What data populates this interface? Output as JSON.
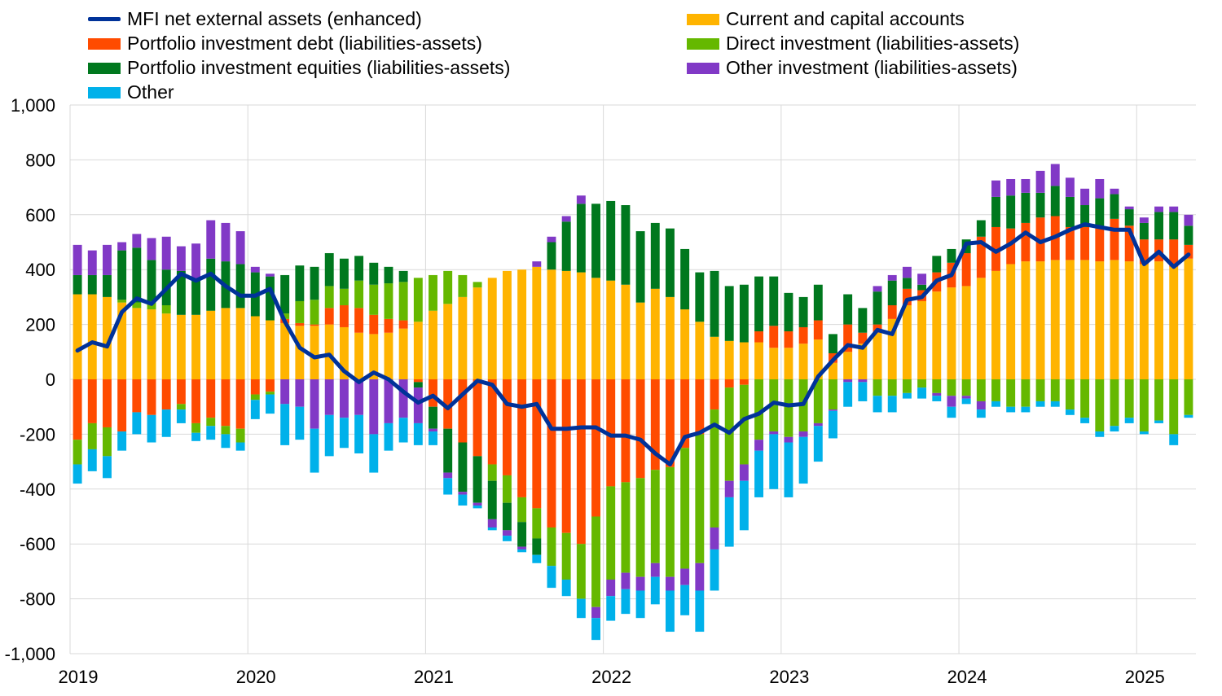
{
  "chart_data": {
    "type": "stacked-bar-with-line",
    "title": "",
    "xlabel": "",
    "ylabel": "",
    "ylim": [
      -1000,
      1000
    ],
    "yticks": [
      -1000,
      -800,
      -600,
      -400,
      -200,
      0,
      200,
      400,
      600,
      800,
      1000
    ],
    "ytick_labels": [
      "-1,000",
      "-800",
      "-600",
      "-400",
      "-200",
      "0",
      "200",
      "400",
      "600",
      "800",
      "1,000"
    ],
    "year_labels": [
      "2019",
      "2020",
      "2021",
      "2022",
      "2023",
      "2024",
      "2025"
    ],
    "period_count": 76,
    "legend_position": "top",
    "series": [
      {
        "name": "Current and capital accounts",
        "key": "cca",
        "color": "#FFB400",
        "values": [
          310,
          310,
          300,
          280,
          260,
          255,
          240,
          235,
          235,
          250,
          260,
          260,
          230,
          215,
          205,
          195,
          195,
          200,
          190,
          170,
          165,
          170,
          185,
          210,
          250,
          275,
          300,
          335,
          370,
          395,
          400,
          410,
          400,
          395,
          390,
          370,
          360,
          345,
          280,
          330,
          300,
          255,
          210,
          155,
          140,
          135,
          135,
          115,
          115,
          130,
          145,
          60,
          100,
          130,
          170,
          220,
          270,
          285,
          320,
          335,
          340,
          370,
          395,
          420,
          430,
          430,
          435,
          435,
          435,
          430,
          435,
          430,
          420,
          430,
          410,
          440
        ]
      },
      {
        "name": "Portfolio investment debt (liabilities-assets)",
        "key": "pid",
        "color": "#FF4B00",
        "values": [
          -220,
          -160,
          -175,
          -190,
          -120,
          -130,
          -110,
          -90,
          -160,
          -140,
          -170,
          -180,
          -55,
          -45,
          15,
          10,
          5,
          60,
          80,
          90,
          70,
          50,
          30,
          -10,
          -100,
          -180,
          -230,
          -280,
          -310,
          -350,
          -430,
          -470,
          -540,
          -560,
          -600,
          -500,
          -390,
          -375,
          -360,
          -330,
          -320,
          -250,
          -200,
          -110,
          -30,
          -20,
          40,
          80,
          60,
          60,
          70,
          35,
          100,
          40,
          30,
          50,
          60,
          40,
          70,
          90,
          120,
          150,
          160,
          130,
          140,
          160,
          160,
          120,
          120,
          120,
          150,
          130,
          90,
          80,
          100,
          50
        ]
      },
      {
        "name": "Direct investment (liabilities-assets)",
        "key": "di",
        "color": "#65B800",
        "values": [
          -90,
          -95,
          -105,
          10,
          20,
          30,
          30,
          -20,
          -35,
          -30,
          -30,
          -50,
          -20,
          -10,
          20,
          80,
          90,
          80,
          60,
          100,
          110,
          130,
          140,
          160,
          130,
          120,
          80,
          20,
          -60,
          -100,
          -90,
          -110,
          -140,
          -170,
          -200,
          -330,
          -340,
          -330,
          -360,
          -340,
          -400,
          -440,
          -470,
          -430,
          -340,
          -290,
          -220,
          -190,
          -210,
          -190,
          -160,
          -110,
          0,
          0,
          -60,
          -60,
          -50,
          -30,
          -50,
          -60,
          -60,
          -80,
          -80,
          -100,
          -100,
          -80,
          -80,
          -110,
          -140,
          -190,
          -170,
          -140,
          -190,
          -150,
          -200,
          -130
        ]
      },
      {
        "name": "Portfolio investment equities (liabilities-assets)",
        "key": "pie",
        "color": "#00781E",
        "values": [
          70,
          70,
          80,
          180,
          200,
          150,
          130,
          160,
          130,
          190,
          170,
          160,
          160,
          160,
          140,
          130,
          120,
          120,
          110,
          90,
          80,
          60,
          40,
          -20,
          -80,
          -160,
          -180,
          -170,
          -140,
          -100,
          -90,
          -60,
          100,
          180,
          250,
          270,
          290,
          290,
          260,
          240,
          250,
          220,
          180,
          240,
          200,
          210,
          200,
          180,
          140,
          110,
          130,
          70,
          110,
          90,
          120,
          90,
          40,
          20,
          60,
          50,
          50,
          60,
          110,
          120,
          110,
          90,
          110,
          110,
          80,
          110,
          90,
          60,
          60,
          100,
          100,
          70
        ]
      },
      {
        "name": "Other investment (liabilities-assets)",
        "key": "oi",
        "color": "#8139C6",
        "values": [
          110,
          90,
          110,
          30,
          50,
          80,
          120,
          90,
          130,
          140,
          140,
          120,
          20,
          10,
          -90,
          -100,
          -180,
          -130,
          -140,
          -130,
          -200,
          -160,
          -140,
          -130,
          -10,
          -20,
          -10,
          -10,
          -30,
          -20,
          -10,
          20,
          20,
          20,
          30,
          -40,
          -60,
          -60,
          -50,
          -50,
          -50,
          -60,
          -100,
          -80,
          -60,
          -60,
          -40,
          -10,
          -20,
          -20,
          -10,
          -5,
          -10,
          -10,
          20,
          20,
          40,
          40,
          -10,
          -40,
          -10,
          -30,
          60,
          60,
          50,
          80,
          80,
          70,
          60,
          70,
          20,
          10,
          20,
          20,
          20,
          40
        ]
      },
      {
        "name": "Other",
        "key": "oth",
        "color": "#00B1EA",
        "values": [
          -70,
          -80,
          -80,
          -70,
          -80,
          -100,
          -100,
          -50,
          -30,
          -50,
          -50,
          -30,
          -70,
          -70,
          -150,
          -120,
          -160,
          -150,
          -110,
          -140,
          -140,
          -100,
          -90,
          -80,
          -50,
          -60,
          -40,
          -10,
          -10,
          -20,
          -10,
          -30,
          -80,
          -60,
          -70,
          -80,
          -90,
          -90,
          -100,
          -100,
          -150,
          -110,
          -150,
          -150,
          -180,
          -180,
          -170,
          -200,
          -200,
          -170,
          -130,
          -100,
          -90,
          -70,
          -60,
          -60,
          -20,
          -40,
          -20,
          -40,
          -20,
          -30,
          -20,
          -20,
          -20,
          -20,
          -20,
          -20,
          -20,
          -20,
          -20,
          -20,
          -10,
          -10,
          -40,
          -10
        ]
      },
      {
        "name": "MFI net external assets (enhanced)",
        "key": "mfi",
        "color": "#003299",
        "type": "line",
        "values": [
          105,
          135,
          120,
          245,
          295,
          275,
          330,
          385,
          360,
          385,
          340,
          305,
          305,
          330,
          210,
          115,
          80,
          90,
          30,
          -10,
          25,
          0,
          -45,
          -85,
          -60,
          -105,
          -55,
          -5,
          -20,
          -90,
          -100,
          -90,
          -180,
          -180,
          -175,
          -175,
          -205,
          -205,
          -220,
          -270,
          -310,
          -210,
          -195,
          -165,
          -195,
          -145,
          -125,
          -85,
          -95,
          -90,
          10,
          70,
          125,
          115,
          180,
          165,
          290,
          300,
          360,
          380,
          495,
          500,
          465,
          495,
          535,
          500,
          520,
          545,
          565,
          555,
          545,
          545,
          420,
          465,
          410,
          455
        ]
      }
    ]
  }
}
